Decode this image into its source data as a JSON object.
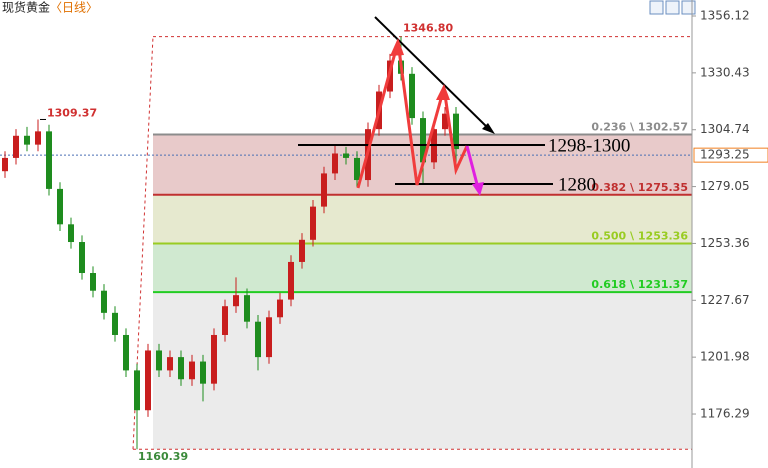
{
  "chart_data": {
    "type": "candlestick",
    "title": "现货黄金",
    "period": "〈日线〉",
    "ylim": [
      1151.9,
      1363.35
    ],
    "yticks": [
      1176.29,
      1201.98,
      1227.67,
      1253.36,
      1279.05,
      1304.74,
      1330.43,
      1356.12
    ],
    "current_price": 1293.25,
    "range_high": {
      "value": 1346.8,
      "label": "1346.80"
    },
    "range_low": 1160.39,
    "prev_high": 1309.37,
    "fib_levels": [
      {
        "value": 1302.57,
        "label": "0.236 \\ 1302.57",
        "color": "#8c8c8c",
        "zone_color": "#e8caca"
      },
      {
        "value": 1275.35,
        "label": "0.382 \\ 1275.35",
        "color": "#c03030",
        "zone_color": "#e6e9cf"
      },
      {
        "value": 1253.36,
        "label": "0.500 \\ 1253.36",
        "color": "#99cc22",
        "zone_color": "#d0e9d0"
      },
      {
        "value": 1231.37,
        "label": "0.618 \\ 1231.37",
        "color": "#22cc22",
        "zone_color": "#ebebeb"
      }
    ],
    "annotations": [
      "1298-1300",
      "1280"
    ],
    "up_color": "#c81e1e",
    "down_color": "#1e8c1e",
    "candles": [
      [
        1286,
        1295,
        1283,
        1292
      ],
      [
        1292,
        1305,
        1289,
        1302
      ],
      [
        1302,
        1306,
        1295,
        1298
      ],
      [
        1298,
        1309.37,
        1295,
        1304
      ],
      [
        1304,
        1307,
        1275,
        1278
      ],
      [
        1278,
        1281,
        1259,
        1262
      ],
      [
        1262,
        1265,
        1251,
        1254
      ],
      [
        1254,
        1257,
        1237,
        1240
      ],
      [
        1240,
        1243,
        1229,
        1232
      ],
      [
        1232,
        1235,
        1219,
        1222
      ],
      [
        1222,
        1225,
        1209,
        1212
      ],
      [
        1212,
        1215,
        1193,
        1196
      ],
      [
        1196,
        1199,
        1160.39,
        1178
      ],
      [
        1178,
        1208,
        1175,
        1205
      ],
      [
        1205,
        1208,
        1193,
        1196
      ],
      [
        1196,
        1205,
        1193,
        1202
      ],
      [
        1202,
        1205,
        1189,
        1192
      ],
      [
        1192,
        1203,
        1189,
        1200
      ],
      [
        1200,
        1203,
        1182,
        1190
      ],
      [
        1190,
        1215,
        1187,
        1212
      ],
      [
        1212,
        1228,
        1209,
        1225
      ],
      [
        1225,
        1238,
        1222,
        1230
      ],
      [
        1230,
        1233,
        1215,
        1218
      ],
      [
        1218,
        1221,
        1196,
        1202
      ],
      [
        1202,
        1223,
        1199,
        1220
      ],
      [
        1220,
        1231,
        1217,
        1228
      ],
      [
        1228,
        1248,
        1225,
        1245
      ],
      [
        1245,
        1258,
        1242,
        1255
      ],
      [
        1255,
        1273,
        1252,
        1270
      ],
      [
        1270,
        1288,
        1267,
        1285
      ],
      [
        1285,
        1298,
        1282,
        1294
      ],
      [
        1294,
        1297,
        1289,
        1292
      ],
      [
        1292,
        1295,
        1279,
        1282
      ],
      [
        1282,
        1308,
        1279,
        1305
      ],
      [
        1305,
        1325,
        1302,
        1322
      ],
      [
        1322,
        1339,
        1319,
        1336
      ],
      [
        1336,
        1346.8,
        1327,
        1330
      ],
      [
        1330,
        1333,
        1307,
        1310
      ],
      [
        1310,
        1313,
        1280,
        1290
      ],
      [
        1290,
        1308,
        1287,
        1305
      ],
      [
        1305,
        1315,
        1302,
        1312
      ],
      [
        1312,
        1315,
        1290,
        1296
      ]
    ]
  }
}
